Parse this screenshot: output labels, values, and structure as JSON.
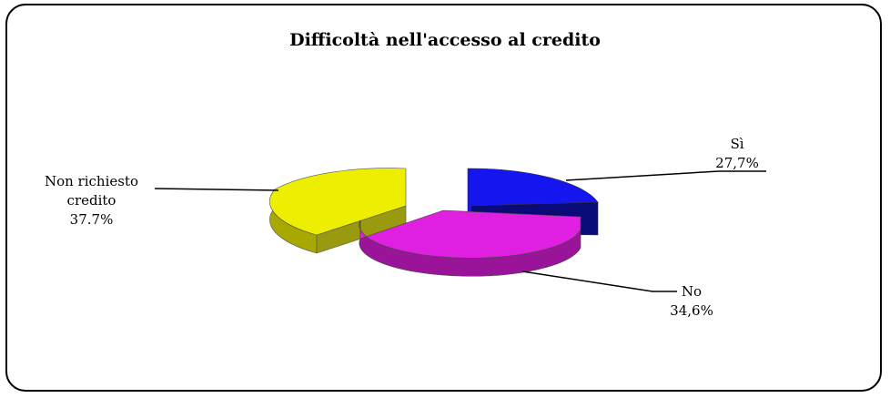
{
  "chart_data": {
    "type": "pie",
    "title": "Difficoltà nell'accesso al credito",
    "slices": [
      {
        "name": "Sì",
        "value_label": "27,7%",
        "value": 27.7,
        "color": "#1515f0"
      },
      {
        "name": "No",
        "value_label": "34,6%",
        "value": 34.6,
        "color": "#e020e0"
      },
      {
        "name_lines": [
          "Non richiesto",
          "credito"
        ],
        "value_label": "37.7%",
        "value": 37.7,
        "color": "#eeee00"
      }
    ]
  }
}
